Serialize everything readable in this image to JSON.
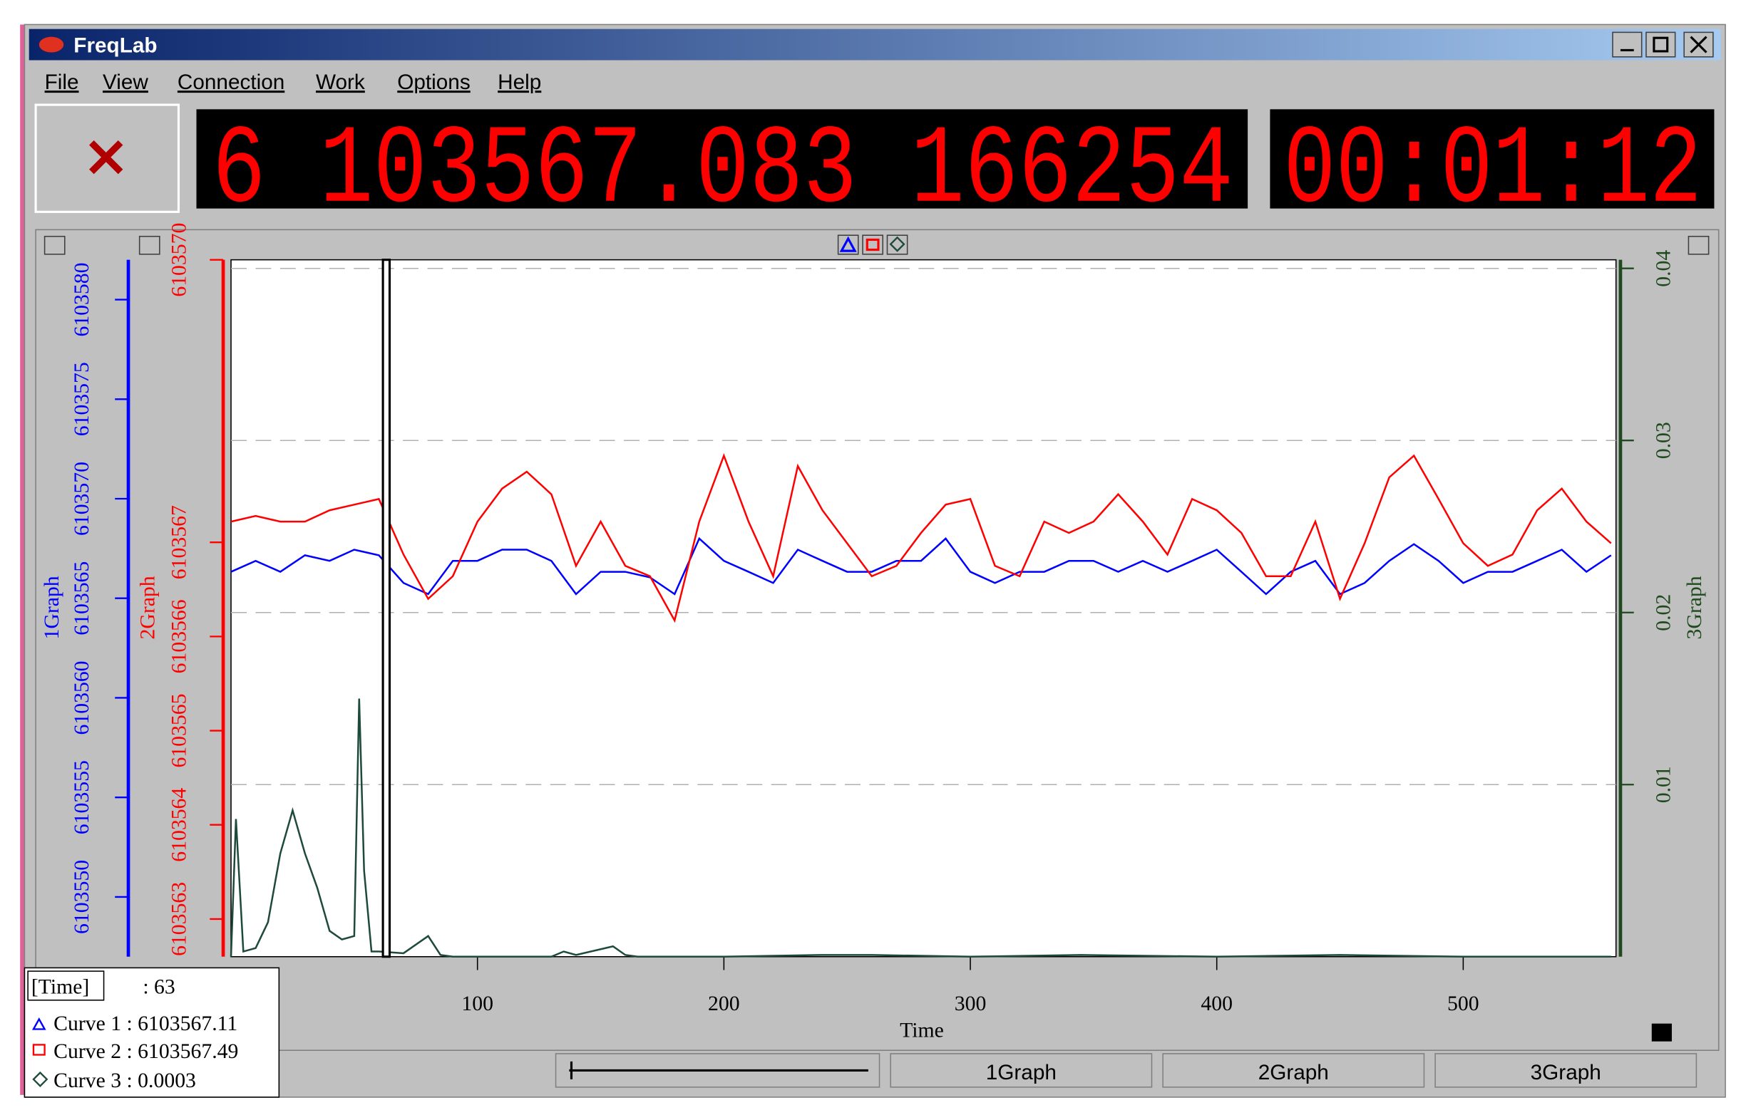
{
  "window": {
    "title": "FreqLab",
    "menu": [
      "File",
      "View",
      "Connection",
      "Work",
      "Options",
      "Help"
    ],
    "frequency_display": "6 103567.083 166254",
    "time_display": "00:01:12",
    "readout": [
      "[Time]",
      ": 63",
      "Curve 1 : 6103567.11",
      "Curve 2 : 6103567.49",
      "Curve 3 : 0.0003"
    ],
    "status_buttons": [
      "1Graph",
      "2Graph",
      "3Graph"
    ]
  },
  "chart_data": {
    "type": "line",
    "xlabel": "Time",
    "cursor": 63,
    "xlim": [
      0,
      562
    ],
    "xticks": [
      100,
      200,
      300,
      400,
      500
    ],
    "ylabel": "1Graph",
    "ylim": [
      6103547,
      6103582
    ],
    "yticks": [
      6103550,
      6103555,
      6103560,
      6103565,
      6103570,
      6103575,
      6103580
    ],
    "y2label": "2Graph",
    "y2lim": [
      6103562.6,
      6103570
    ],
    "y2ticks": [
      6103563,
      6103564,
      6103565,
      6103566,
      6103567,
      6103570
    ],
    "y3label": "3Graph",
    "y3lim": [
      0,
      0.0405
    ],
    "y3ticks": [
      0.01,
      0.02,
      0.03,
      0.04
    ],
    "grid": true,
    "x": [
      0,
      10,
      20,
      30,
      40,
      50,
      60,
      70,
      80,
      90,
      100,
      110,
      120,
      130,
      140,
      150,
      160,
      170,
      180,
      190,
      200,
      210,
      220,
      230,
      240,
      250,
      260,
      270,
      280,
      290,
      300,
      310,
      320,
      330,
      340,
      350,
      360,
      370,
      380,
      390,
      400,
      410,
      420,
      430,
      440,
      450,
      460,
      470,
      480,
      490,
      500,
      510,
      520,
      530,
      540,
      550,
      560
    ],
    "series": [
      {
        "name": "Curve 1",
        "color": "#0000ff",
        "axis": "y",
        "values": [
          6103566.33,
          6103566.88,
          6103566.33,
          6103567.16,
          6103566.88,
          6103567.44,
          6103567.16,
          6103565.77,
          6103565.21,
          6103566.88,
          6103566.88,
          6103567.44,
          6103567.44,
          6103566.88,
          6103565.21,
          6103566.33,
          6103566.33,
          6103566.05,
          6103565.21,
          6103568.0,
          6103566.88,
          6103566.33,
          6103565.77,
          6103567.44,
          6103566.88,
          6103566.33,
          6103566.33,
          6103566.88,
          6103566.88,
          6103568.0,
          6103566.33,
          6103565.77,
          6103566.33,
          6103566.33,
          6103566.88,
          6103566.88,
          6103566.33,
          6103566.88,
          6103566.33,
          6103566.88,
          6103567.44,
          6103566.33,
          6103565.21,
          6103566.33,
          6103566.88,
          6103565.21,
          6103565.77,
          6103566.88,
          6103567.72,
          6103566.88,
          6103565.77,
          6103566.33,
          6103566.33,
          6103566.88,
          6103567.44,
          6103566.33,
          6103567.16
        ]
      },
      {
        "name": "Curve 2",
        "color": "#ff0000",
        "axis": "y2",
        "values": [
          6103567.22,
          6103567.28,
          6103567.22,
          6103567.22,
          6103567.34,
          6103567.4,
          6103567.46,
          6103566.87,
          6103566.4,
          6103566.64,
          6103567.22,
          6103567.57,
          6103567.75,
          6103567.51,
          6103566.75,
          6103567.22,
          6103566.75,
          6103566.64,
          6103566.17,
          6103567.22,
          6103567.92,
          6103567.22,
          6103566.64,
          6103567.81,
          6103567.34,
          6103566.99,
          6103566.64,
          6103566.75,
          6103567.1,
          6103567.4,
          6103567.46,
          6103566.75,
          6103566.64,
          6103567.22,
          6103567.1,
          6103567.22,
          6103567.51,
          6103567.22,
          6103566.87,
          6103567.46,
          6103567.34,
          6103567.1,
          6103566.64,
          6103566.64,
          6103567.22,
          6103566.4,
          6103566.99,
          6103567.69,
          6103567.92,
          6103567.46,
          6103566.99,
          6103566.75,
          6103566.87,
          6103567.34,
          6103567.57,
          6103567.22,
          6103566.99
        ]
      },
      {
        "name": "Curve 3",
        "color": "#1e4a3a",
        "axis": "y3",
        "x": [
          0,
          2,
          5,
          10,
          15,
          20,
          25,
          30,
          35,
          40,
          45,
          50,
          52,
          54,
          57,
          60,
          70,
          80,
          85,
          90,
          130,
          135,
          140,
          155,
          160,
          165,
          200,
          240,
          260,
          300,
          345,
          400,
          450,
          500,
          560
        ],
        "values": [
          0,
          0.008,
          0.0003,
          0.0005,
          0.002,
          0.006,
          0.0085,
          0.006,
          0.004,
          0.0015,
          0.001,
          0.0012,
          0.015,
          0.005,
          0.0003,
          0.0003,
          0.0002,
          0.0012,
          0.0001,
          0,
          0,
          0.0003,
          0.0001,
          0.0006,
          0.0001,
          0,
          0,
          0.0001,
          0.0001,
          0,
          0.0001,
          0,
          0.0001,
          0,
          0
        ]
      }
    ]
  }
}
